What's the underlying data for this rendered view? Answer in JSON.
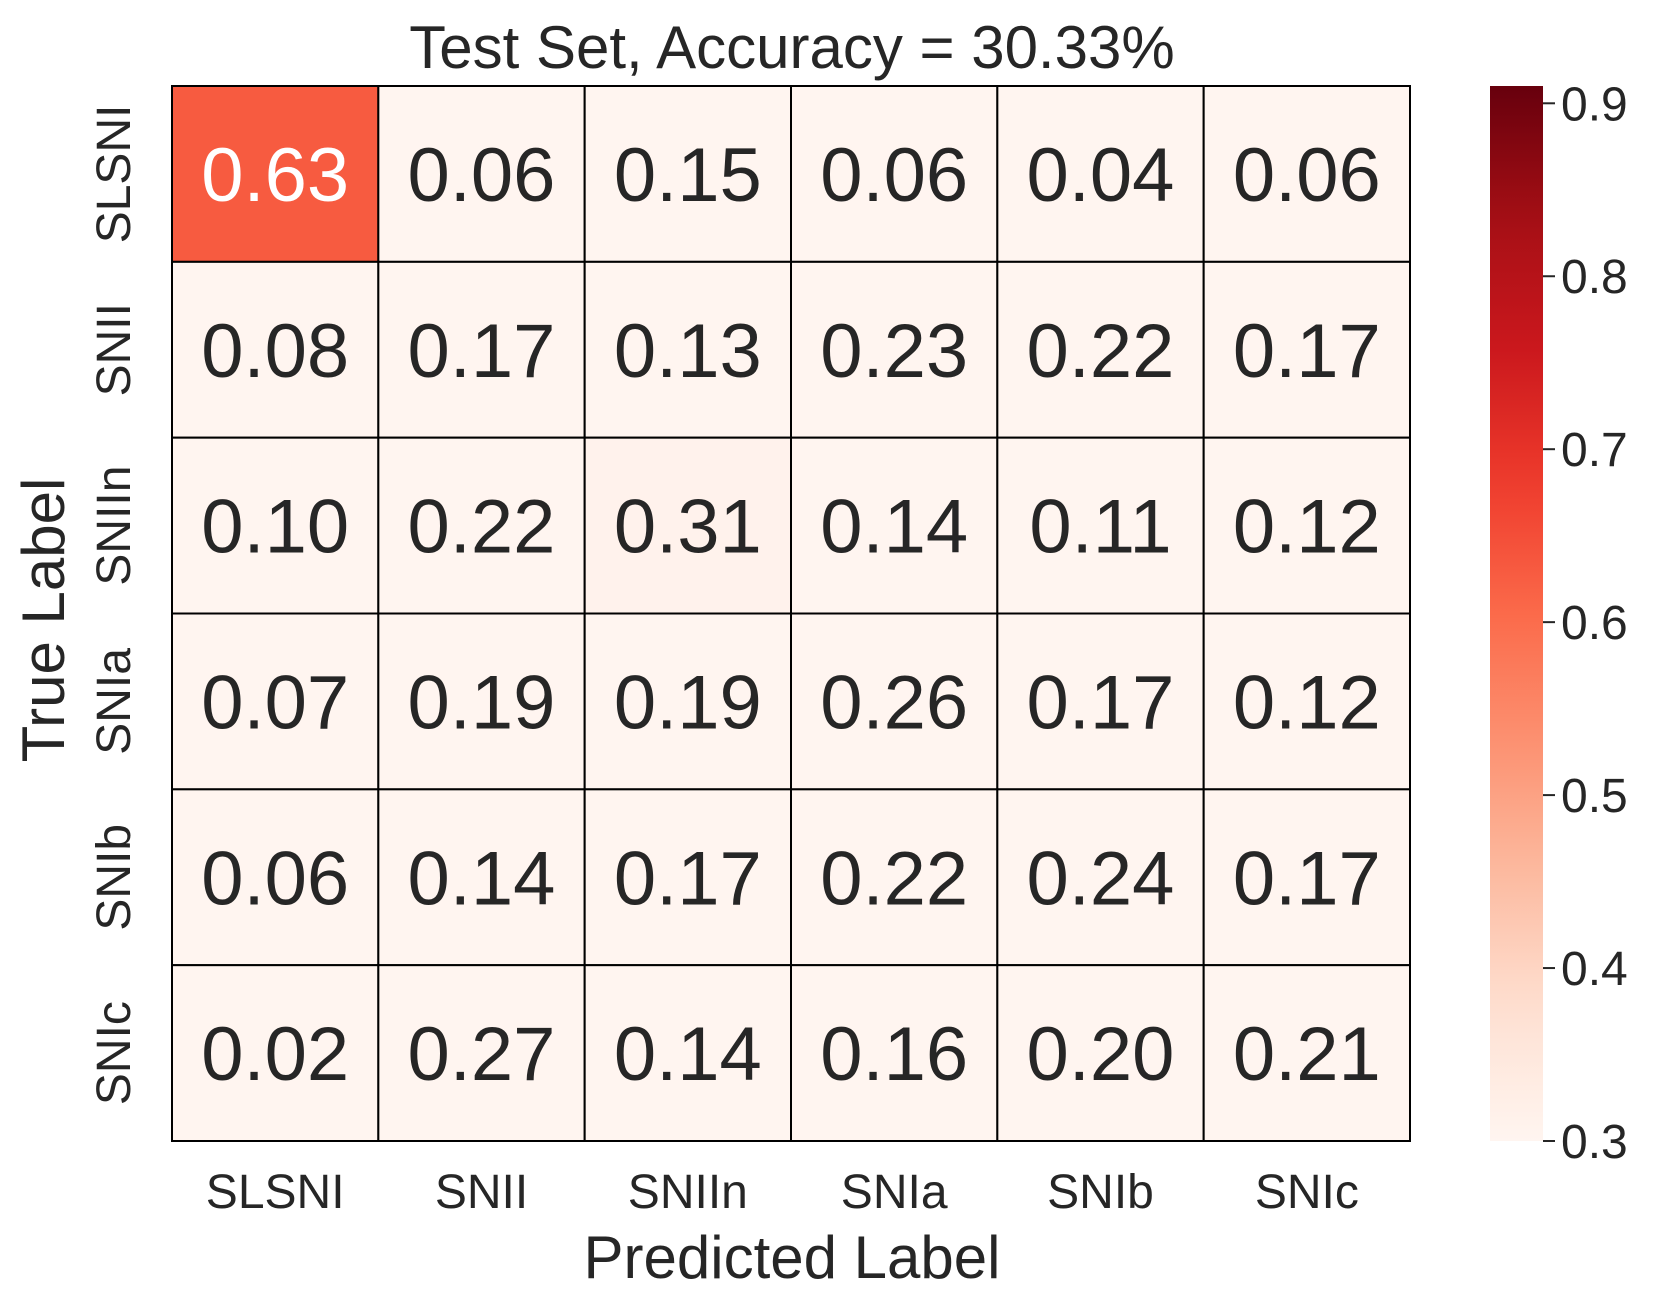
{
  "chart_data": {
    "type": "heatmap",
    "title": "Test Set, Accuracy = 30.33%",
    "xlabel": "Predicted Label",
    "ylabel": "True Label",
    "x_categories": [
      "SLSNI",
      "SNII",
      "SNIIn",
      "SNIa",
      "SNIb",
      "SNIc"
    ],
    "y_categories": [
      "SLSNI",
      "SNII",
      "SNIIn",
      "SNIa",
      "SNIb",
      "SNIc"
    ],
    "values": [
      [
        0.63,
        0.06,
        0.15,
        0.06,
        0.04,
        0.06
      ],
      [
        0.08,
        0.17,
        0.13,
        0.23,
        0.22,
        0.17
      ],
      [
        0.1,
        0.22,
        0.31,
        0.14,
        0.11,
        0.12
      ],
      [
        0.07,
        0.19,
        0.19,
        0.26,
        0.17,
        0.12
      ],
      [
        0.06,
        0.14,
        0.17,
        0.22,
        0.24,
        0.17
      ],
      [
        0.02,
        0.27,
        0.14,
        0.16,
        0.2,
        0.21
      ]
    ],
    "value_labels": [
      [
        "0.63",
        "0.06",
        "0.15",
        "0.06",
        "0.04",
        "0.06"
      ],
      [
        "0.08",
        "0.17",
        "0.13",
        "0.23",
        "0.22",
        "0.17"
      ],
      [
        "0.10",
        "0.22",
        "0.31",
        "0.14",
        "0.11",
        "0.12"
      ],
      [
        "0.07",
        "0.19",
        "0.19",
        "0.26",
        "0.17",
        "0.12"
      ],
      [
        "0.06",
        "0.14",
        "0.17",
        "0.22",
        "0.24",
        "0.17"
      ],
      [
        "0.02",
        "0.27",
        "0.14",
        "0.16",
        "0.20",
        "0.21"
      ]
    ],
    "colormap": "Reds",
    "colorbar": {
      "range": [
        0.3,
        0.91
      ],
      "ticks": [
        0.3,
        0.4,
        0.5,
        0.6,
        0.7,
        0.8,
        0.9
      ],
      "tick_labels": [
        "0.3",
        "0.4",
        "0.5",
        "0.6",
        "0.7",
        "0.8",
        "0.9"
      ],
      "placement": "right"
    },
    "colors": {
      "text_dark": "#262626",
      "text_light": "#ffffff",
      "grid_line": "#000000"
    },
    "grid": true
  }
}
